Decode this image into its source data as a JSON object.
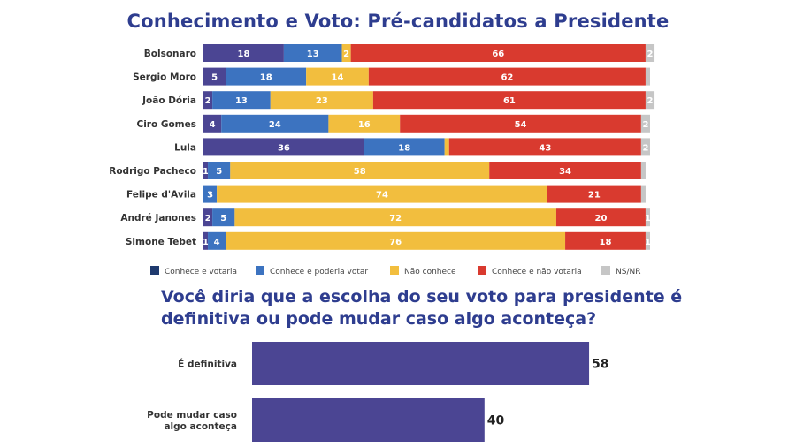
{
  "chart_data": [
    {
      "type": "bar",
      "orientation": "horizontal",
      "stacked": true,
      "title": "Conhecimento e Voto: Pré-candidatos a Presidente",
      "categories": [
        "Bolsonaro",
        "Sergio Moro",
        "João Dória",
        "Ciro Gomes",
        "Lula",
        "Rodrigo Pacheco",
        "Felipe d'Avila",
        "André Janones",
        "Simone Tebet"
      ],
      "series": [
        {
          "name": "Conhece e votaria",
          "color": "#4b4593",
          "values": [
            18,
            5,
            2,
            4,
            36,
            1,
            0,
            2,
            1
          ]
        },
        {
          "name": "Conhece e poderia votar",
          "color": "#3c73c0",
          "values": [
            13,
            18,
            13,
            24,
            18,
            5,
            3,
            5,
            4
          ]
        },
        {
          "name": "Não conhece",
          "color": "#f2be3e",
          "values": [
            2,
            14,
            23,
            16,
            1,
            58,
            74,
            72,
            76
          ]
        },
        {
          "name": "Conhece e não votaria",
          "color": "#d93a2f",
          "values": [
            66,
            62,
            61,
            54,
            43,
            34,
            21,
            20,
            18
          ]
        },
        {
          "name": "NS/NR",
          "color": "#c6c6c6",
          "values": [
            2,
            1,
            2,
            2,
            2,
            1,
            1,
            1,
            1
          ]
        }
      ],
      "labels": [
        [
          "18",
          "13",
          "2",
          "66",
          "2"
        ],
        [
          "5",
          "18",
          "14",
          "62",
          ""
        ],
        [
          "2",
          "13",
          "23",
          "61",
          "2"
        ],
        [
          "4",
          "24",
          "16",
          "54",
          "2"
        ],
        [
          "36",
          "18",
          "",
          "43",
          "2"
        ],
        [
          "1",
          "5",
          "58",
          "34",
          ""
        ],
        [
          "",
          "3",
          "74",
          "21",
          ""
        ],
        [
          "2",
          "5",
          "72",
          "20",
          "1"
        ],
        [
          "1",
          "4",
          "76",
          "18",
          "1"
        ]
      ],
      "legend_position": "bottom",
      "grid": false
    },
    {
      "type": "bar",
      "orientation": "horizontal",
      "title": "Você diria que a escolha do seu voto para presidente é definitiva ou pode mudar caso algo aconteça?",
      "categories": [
        [
          "É definitiva"
        ],
        [
          "Pode mudar caso",
          "algo aconteça"
        ]
      ],
      "values": [
        58,
        40
      ],
      "color": "#4b4593",
      "grid": false
    }
  ]
}
